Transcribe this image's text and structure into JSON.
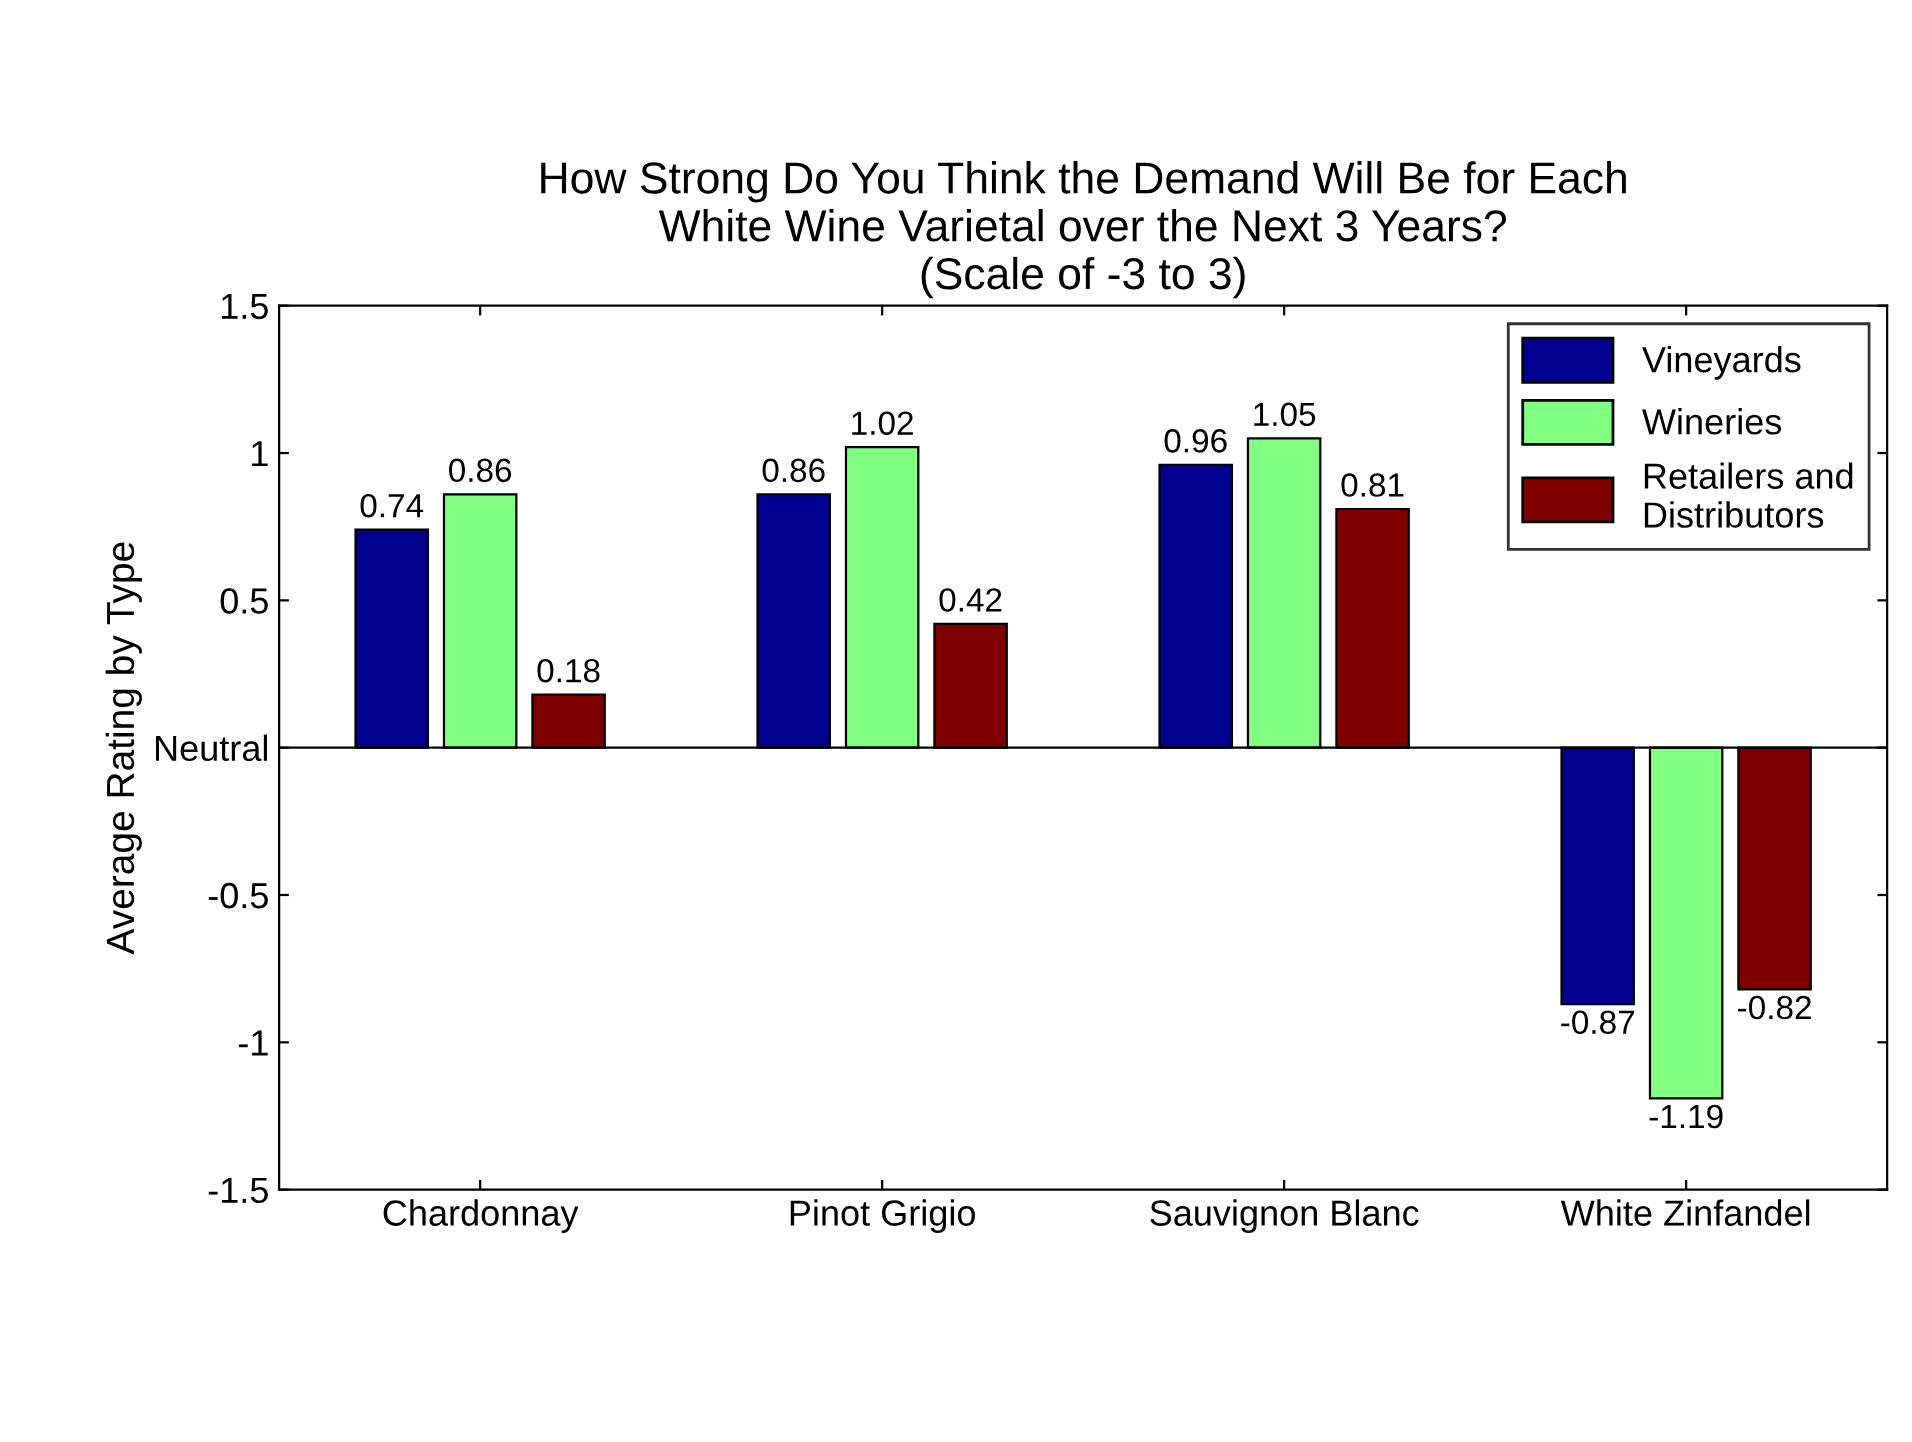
{
  "chart_data": {
    "type": "bar",
    "title": "How Strong Do You Think the Demand Will Be for Each\nWhite Wine Varietal over the Next 3 Years?\n(Scale of -3 to 3)",
    "ylabel": "Average Rating by Type",
    "categories": [
      "Chardonnay",
      "Pinot Grigio",
      "Sauvignon Blanc",
      "White Zinfandel"
    ],
    "series": [
      {
        "name": "Vineyards",
        "color": "#000090",
        "values": [
          0.74,
          0.86,
          0.96,
          -0.87
        ]
      },
      {
        "name": "Wineries",
        "color": "#80ff80",
        "values": [
          0.86,
          1.02,
          1.05,
          -1.19
        ]
      },
      {
        "name": "Retailers and\nDistributors",
        "color": "#800000",
        "values": [
          0.18,
          0.42,
          0.81,
          -0.82
        ]
      }
    ],
    "ylim": [
      -1.5,
      1.5
    ],
    "yticks": [
      -1.5,
      -1,
      -0.5,
      {
        "value": 0,
        "label": "Neutral"
      },
      0.5,
      1,
      1.5
    ],
    "ref_lines": [
      {
        "axis": "y",
        "value": 0,
        "color": "#000000"
      }
    ],
    "data_labels": true,
    "legend": "top right",
    "grid": false
  }
}
